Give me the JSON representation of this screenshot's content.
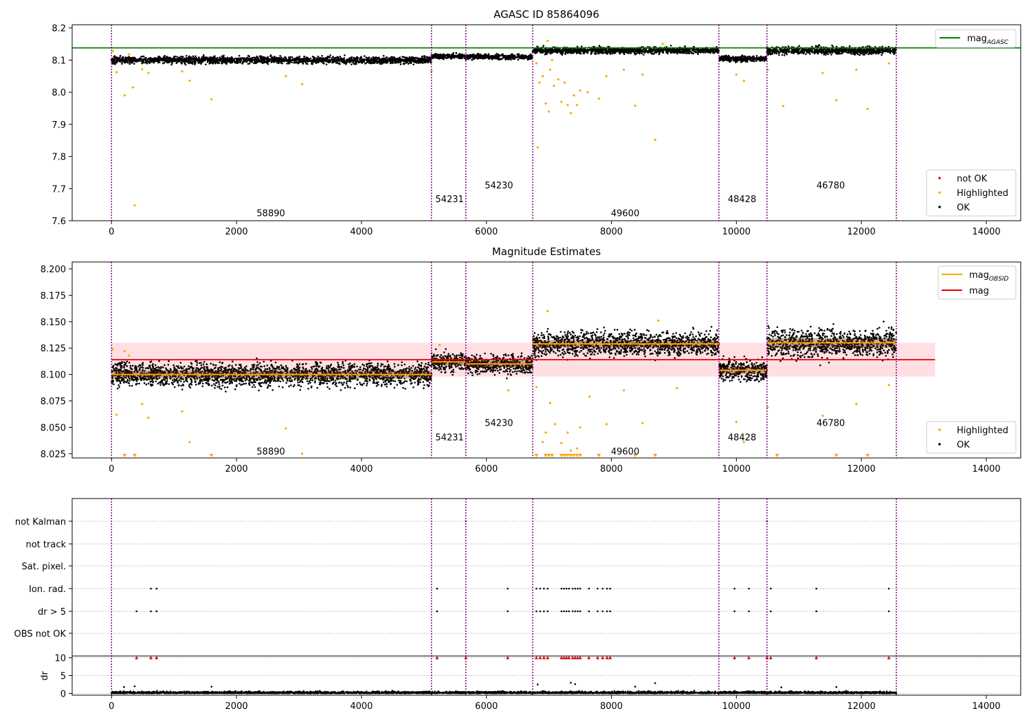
{
  "chart_data": [
    {
      "type": "scatter",
      "title": "AGASC ID 85864096",
      "xlim": [
        -630,
        14550
      ],
      "ylim": [
        7.6,
        8.21
      ],
      "xticks": [
        "0",
        "2000",
        "4000",
        "6000",
        "8000",
        "10000",
        "12000",
        "14000"
      ],
      "yticks": [
        "7.6",
        "7.7",
        "7.8",
        "7.9",
        "8.0",
        "8.1",
        "8.2"
      ],
      "obs_boundaries": [
        0,
        5120,
        5670,
        6740,
        9720,
        10490,
        12560
      ],
      "obs_labels": [
        {
          "text": "58890",
          "x": 2550,
          "y": 7.625
        },
        {
          "text": "54231",
          "x": 5410,
          "y": 7.668
        },
        {
          "text": "54230",
          "x": 6200,
          "y": 7.711
        },
        {
          "text": "49600",
          "x": 8220,
          "y": 7.625
        },
        {
          "text": "48428",
          "x": 10090,
          "y": 7.668
        },
        {
          "text": "46780",
          "x": 11510,
          "y": 7.711
        }
      ],
      "mag_agasc": 8.138,
      "segments": [
        {
          "x0": 0,
          "x1": 5120,
          "level": 8.1,
          "spread": 0.012
        },
        {
          "x0": 5120,
          "x1": 5670,
          "level": 8.112,
          "spread": 0.008
        },
        {
          "x0": 5670,
          "x1": 6740,
          "level": 8.11,
          "spread": 0.009
        },
        {
          "x0": 6740,
          "x1": 9720,
          "level": 8.13,
          "spread": 0.011
        },
        {
          "x0": 9720,
          "x1": 10490,
          "level": 8.104,
          "spread": 0.01
        },
        {
          "x0": 10490,
          "x1": 12560,
          "level": 8.13,
          "spread": 0.013
        }
      ],
      "highlighted": [
        [
          20,
          8.128
        ],
        [
          80,
          8.062
        ],
        [
          210,
          7.99
        ],
        [
          280,
          8.118
        ],
        [
          340,
          8.015
        ],
        [
          370,
          7.648
        ],
        [
          490,
          8.072
        ],
        [
          590,
          8.06
        ],
        [
          1130,
          8.065
        ],
        [
          1250,
          8.036
        ],
        [
          1600,
          7.978
        ],
        [
          2790,
          8.05
        ],
        [
          3050,
          8.025
        ],
        [
          5120,
          8.065
        ],
        [
          6800,
          8.09
        ],
        [
          6850,
          8.03
        ],
        [
          6900,
          8.05
        ],
        [
          6950,
          7.965
        ],
        [
          7000,
          7.94
        ],
        [
          7020,
          8.07
        ],
        [
          7080,
          8.02
        ],
        [
          7150,
          8.04
        ],
        [
          7200,
          7.97
        ],
        [
          7250,
          8.03
        ],
        [
          7300,
          7.96
        ],
        [
          7350,
          7.935
        ],
        [
          7400,
          7.99
        ],
        [
          7450,
          7.96
        ],
        [
          7500,
          8.005
        ],
        [
          7620,
          8.0
        ],
        [
          7800,
          7.98
        ],
        [
          7920,
          8.05
        ],
        [
          8200,
          8.07
        ],
        [
          8380,
          7.958
        ],
        [
          8500,
          8.055
        ],
        [
          8700,
          7.852
        ],
        [
          8820,
          8.15
        ],
        [
          6820,
          7.828
        ],
        [
          10000,
          8.055
        ],
        [
          10120,
          8.035
        ],
        [
          10500,
          8.07
        ],
        [
          10750,
          7.957
        ],
        [
          11380,
          8.06
        ],
        [
          11600,
          7.975
        ],
        [
          11920,
          8.07
        ],
        [
          12100,
          7.948
        ],
        [
          12440,
          8.09
        ],
        [
          6980,
          8.16
        ],
        [
          7050,
          8.1
        ]
      ],
      "legend_top": {
        "label": "mag",
        "subscript": "AGASC"
      },
      "legend_bottom": [
        "not OK",
        "Highlighted",
        "OK"
      ]
    },
    {
      "type": "scatter",
      "title": "Magnitude Estimates",
      "xlim": [
        -630,
        14550
      ],
      "ylim": [
        8.021,
        8.2065
      ],
      "xticks": [
        "0",
        "2000",
        "4000",
        "6000",
        "8000",
        "10000",
        "12000",
        "14000"
      ],
      "yticks": [
        "8.025",
        "8.050",
        "8.075",
        "8.100",
        "8.125",
        "8.150",
        "8.175",
        "8.200"
      ],
      "obs_boundaries": [
        0,
        5120,
        5670,
        6740,
        9720,
        10490,
        12560
      ],
      "obs_labels": [
        {
          "text": "58890",
          "x": 2550,
          "y": 8.0275
        },
        {
          "text": "54231",
          "x": 5410,
          "y": 8.041
        },
        {
          "text": "54230",
          "x": 6200,
          "y": 8.0545
        },
        {
          "text": "49600",
          "x": 8220,
          "y": 8.0275
        },
        {
          "text": "48428",
          "x": 10090,
          "y": 8.041
        },
        {
          "text": "46780",
          "x": 11510,
          "y": 8.0545
        }
      ],
      "mag": 8.114,
      "mag_band": [
        8.098,
        8.13
      ],
      "mag_x_range": [
        0,
        13180
      ],
      "segments": [
        {
          "x0": 0,
          "x1": 5120,
          "level": 8.1,
          "spread": 0.0075
        },
        {
          "x0": 5120,
          "x1": 5670,
          "level": 8.112,
          "spread": 0.006
        },
        {
          "x0": 5670,
          "x1": 6740,
          "level": 8.11,
          "spread": 0.006
        },
        {
          "x0": 6740,
          "x1": 9720,
          "level": 8.129,
          "spread": 0.0075
        },
        {
          "x0": 9720,
          "x1": 10490,
          "level": 8.104,
          "spread": 0.0065
        },
        {
          "x0": 10490,
          "x1": 12560,
          "level": 8.13,
          "spread": 0.009
        }
      ],
      "highlighted": [
        [
          20,
          8.124
        ],
        [
          80,
          8.062
        ],
        [
          210,
          8.122
        ],
        [
          280,
          8.118
        ],
        [
          490,
          8.072
        ],
        [
          590,
          8.059
        ],
        [
          1130,
          8.065
        ],
        [
          1250,
          8.036
        ],
        [
          2790,
          8.049
        ],
        [
          3050,
          8.025
        ],
        [
          5120,
          8.065
        ],
        [
          5250,
          8.128
        ],
        [
          6350,
          8.085
        ],
        [
          6800,
          8.088
        ],
        [
          6900,
          8.036
        ],
        [
          6950,
          8.045
        ],
        [
          7020,
          8.073
        ],
        [
          7100,
          8.053
        ],
        [
          7200,
          8.035
        ],
        [
          7300,
          8.045
        ],
        [
          7350,
          8.028
        ],
        [
          7450,
          8.03
        ],
        [
          7500,
          8.05
        ],
        [
          7650,
          8.079
        ],
        [
          7920,
          8.053
        ],
        [
          8200,
          8.085
        ],
        [
          8500,
          8.054
        ],
        [
          8750,
          8.151
        ],
        [
          9050,
          8.087
        ],
        [
          10000,
          8.055
        ],
        [
          10120,
          8.036
        ],
        [
          10500,
          8.069
        ],
        [
          11380,
          8.061
        ],
        [
          11920,
          8.072
        ],
        [
          12440,
          8.09
        ],
        [
          6980,
          8.16
        ]
      ],
      "clipped": [
        210,
        370,
        1600,
        6800,
        6950,
        7000,
        7050,
        7200,
        7250,
        7300,
        7350,
        7400,
        7450,
        7500,
        7800,
        8380,
        8700,
        10650,
        11600,
        12100
      ],
      "legend_top": [
        {
          "label": "mag",
          "subscript": "OBSID"
        },
        {
          "label": "mag",
          "subscript": ""
        }
      ],
      "legend_bottom": [
        "Highlighted",
        "OK"
      ]
    },
    {
      "type": "scatter",
      "xlim": [
        -630,
        14550
      ],
      "xticks": [
        "0",
        "2000",
        "4000",
        "6000",
        "8000",
        "10000",
        "12000",
        "14000"
      ],
      "obs_boundaries": [
        0,
        5120,
        5670,
        6740,
        9720,
        10490,
        12560
      ],
      "flag_rows": [
        "not Kalman",
        "not track",
        "Sat. pixel.",
        "Ion. rad.",
        "dr > 5",
        "OBS not OK"
      ],
      "ion_rad_x": [
        630,
        720,
        5210,
        6340,
        6800,
        6860,
        6920,
        6980,
        7200,
        7240,
        7280,
        7320,
        7380,
        7420,
        7460,
        7500,
        7640,
        7780,
        7860,
        7930,
        7980,
        9970,
        10200,
        10550,
        11280,
        12440
      ],
      "dr5_x": [
        400,
        630,
        720,
        5210,
        6340,
        6800,
        6860,
        6920,
        6980,
        7200,
        7240,
        7280,
        7320,
        7380,
        7420,
        7460,
        7500,
        7640,
        7780,
        7860,
        7930,
        7980,
        9970,
        10200,
        10550,
        11280,
        12440
      ],
      "not_kalman_x": [
        5670,
        10490
      ],
      "ylabel": "dr",
      "yticks": [
        "0",
        "5",
        "10"
      ],
      "dr_ylim": [
        -0.5,
        10.5
      ],
      "dr_clipped_x": [
        400,
        630,
        720,
        5210,
        5670,
        6340,
        6800,
        6860,
        6920,
        6980,
        7200,
        7240,
        7280,
        7320,
        7380,
        7420,
        7460,
        7500,
        7640,
        7780,
        7860,
        7930,
        7980,
        9970,
        10200,
        10490,
        10550,
        11280,
        12440
      ],
      "dr_outliers": [
        [
          200,
          1.8
        ],
        [
          370,
          2.0
        ],
        [
          1600,
          1.9
        ],
        [
          6820,
          2.5
        ],
        [
          7350,
          3.0
        ],
        [
          7420,
          2.6
        ],
        [
          8380,
          1.9
        ],
        [
          8700,
          2.9
        ],
        [
          10720,
          1.7
        ],
        [
          11600,
          1.8
        ]
      ]
    }
  ]
}
